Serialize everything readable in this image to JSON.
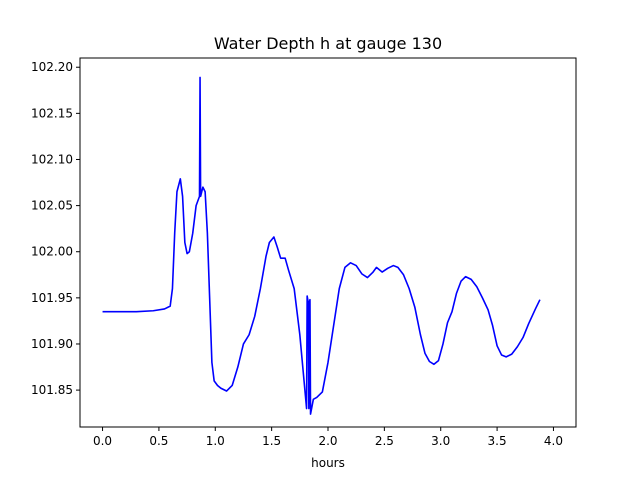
{
  "chart_data": {
    "type": "line",
    "title": "Water Depth h at gauge 130",
    "xlabel": "hours",
    "ylabel": "",
    "xlim": [
      -0.2,
      4.2
    ],
    "ylim": [
      101.81,
      102.21
    ],
    "x_ticks": [
      0.0,
      0.5,
      1.0,
      1.5,
      2.0,
      2.5,
      3.0,
      3.5,
      4.0
    ],
    "x_tick_labels": [
      "0.0",
      "0.5",
      "1.0",
      "1.5",
      "2.0",
      "2.5",
      "3.0",
      "3.5",
      "4.0"
    ],
    "y_ticks": [
      101.85,
      101.9,
      101.95,
      102.0,
      102.05,
      102.1,
      102.15,
      102.2
    ],
    "y_tick_labels": [
      "101.85",
      "101.90",
      "101.95",
      "102.00",
      "102.05",
      "102.10",
      "102.15",
      "102.20"
    ],
    "grid": false,
    "legend": "none",
    "series": [
      {
        "color": "#0000ff",
        "points": [
          [
            0.0,
            101.935
          ],
          [
            0.3,
            101.935
          ],
          [
            0.45,
            101.936
          ],
          [
            0.55,
            101.938
          ],
          [
            0.6,
            101.941
          ],
          [
            0.62,
            101.96
          ],
          [
            0.64,
            102.02
          ],
          [
            0.66,
            102.065
          ],
          [
            0.69,
            102.079
          ],
          [
            0.71,
            102.06
          ],
          [
            0.73,
            102.01
          ],
          [
            0.75,
            101.998
          ],
          [
            0.77,
            102.0
          ],
          [
            0.8,
            102.02
          ],
          [
            0.83,
            102.05
          ],
          [
            0.86,
            102.06
          ],
          [
            0.865,
            102.189
          ],
          [
            0.87,
            102.06
          ],
          [
            0.89,
            102.07
          ],
          [
            0.91,
            102.065
          ],
          [
            0.93,
            102.02
          ],
          [
            0.95,
            101.95
          ],
          [
            0.97,
            101.88
          ],
          [
            0.99,
            101.86
          ],
          [
            1.02,
            101.855
          ],
          [
            1.05,
            101.852
          ],
          [
            1.1,
            101.849
          ],
          [
            1.15,
            101.855
          ],
          [
            1.2,
            101.875
          ],
          [
            1.25,
            101.9
          ],
          [
            1.3,
            101.91
          ],
          [
            1.35,
            101.93
          ],
          [
            1.4,
            101.96
          ],
          [
            1.45,
            101.995
          ],
          [
            1.48,
            102.01
          ],
          [
            1.52,
            102.016
          ],
          [
            1.55,
            102.005
          ],
          [
            1.58,
            101.993
          ],
          [
            1.62,
            101.993
          ],
          [
            1.65,
            101.98
          ],
          [
            1.7,
            101.96
          ],
          [
            1.75,
            101.91
          ],
          [
            1.78,
            101.87
          ],
          [
            1.81,
            101.83
          ],
          [
            1.815,
            101.952
          ],
          [
            1.825,
            101.945
          ],
          [
            1.83,
            101.83
          ],
          [
            1.835,
            101.945
          ],
          [
            1.84,
            101.948
          ],
          [
            1.845,
            101.824
          ],
          [
            1.87,
            101.84
          ],
          [
            1.9,
            101.842
          ],
          [
            1.95,
            101.848
          ],
          [
            2.0,
            101.88
          ],
          [
            2.05,
            101.92
          ],
          [
            2.1,
            101.96
          ],
          [
            2.15,
            101.983
          ],
          [
            2.2,
            101.988
          ],
          [
            2.25,
            101.985
          ],
          [
            2.3,
            101.976
          ],
          [
            2.35,
            101.972
          ],
          [
            2.4,
            101.978
          ],
          [
            2.43,
            101.983
          ],
          [
            2.48,
            101.978
          ],
          [
            2.53,
            101.982
          ],
          [
            2.58,
            101.985
          ],
          [
            2.62,
            101.983
          ],
          [
            2.67,
            101.975
          ],
          [
            2.72,
            101.96
          ],
          [
            2.77,
            101.94
          ],
          [
            2.82,
            101.91
          ],
          [
            2.86,
            101.89
          ],
          [
            2.9,
            101.881
          ],
          [
            2.94,
            101.878
          ],
          [
            2.98,
            101.882
          ],
          [
            3.02,
            101.9
          ],
          [
            3.06,
            101.923
          ],
          [
            3.1,
            101.935
          ],
          [
            3.14,
            101.955
          ],
          [
            3.18,
            101.968
          ],
          [
            3.22,
            101.973
          ],
          [
            3.27,
            101.97
          ],
          [
            3.32,
            101.962
          ],
          [
            3.37,
            101.95
          ],
          [
            3.42,
            101.937
          ],
          [
            3.46,
            101.92
          ],
          [
            3.5,
            101.898
          ],
          [
            3.54,
            101.888
          ],
          [
            3.58,
            101.886
          ],
          [
            3.63,
            101.889
          ],
          [
            3.68,
            101.897
          ],
          [
            3.73,
            101.907
          ],
          [
            3.78,
            101.922
          ],
          [
            3.84,
            101.938
          ],
          [
            3.88,
            101.948
          ]
        ]
      }
    ]
  }
}
